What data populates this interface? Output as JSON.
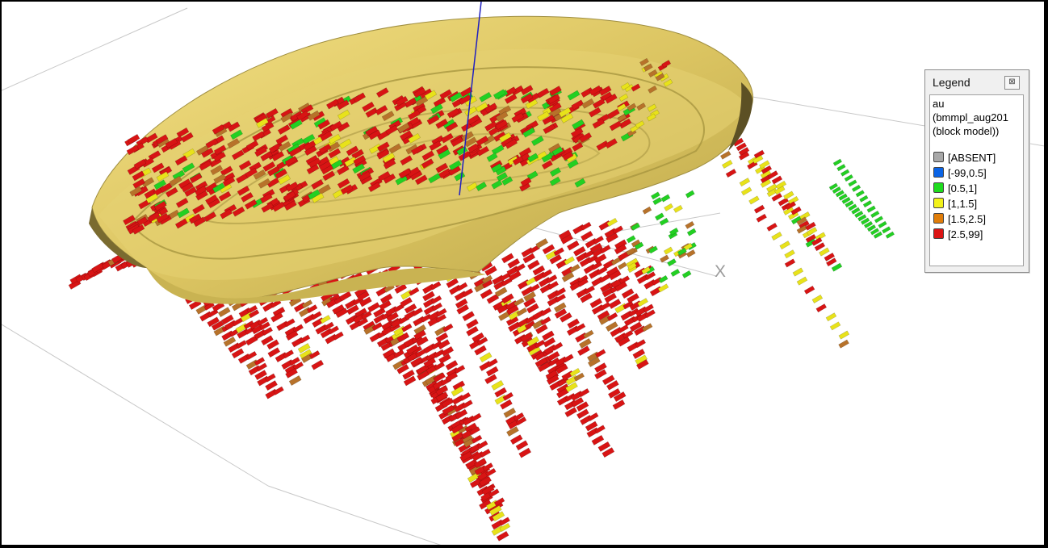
{
  "viewer": {
    "axis_x_label": "X"
  },
  "legend": {
    "title": "Legend",
    "close_glyph": "⊠",
    "attribute": "au",
    "source_line1": "(bmmpl_aug201",
    "source_line2": "(block model))",
    "items": [
      {
        "label": "[ABSENT]",
        "color": "#a8a8a8"
      },
      {
        "label": "[-99,0.5]",
        "color": "#0a64e6"
      },
      {
        "label": "[0.5,1]",
        "color": "#1edc1e"
      },
      {
        "label": "[1,1.5]",
        "color": "#f2f21a"
      },
      {
        "label": "[1.5,2.5]",
        "color": "#e07d0a"
      },
      {
        "label": "[2.5,99]",
        "color": "#dc1414"
      }
    ]
  },
  "colors": {
    "pit_shell": "#d8c25e",
    "pit_shadow": "#8a7a3a",
    "grade_red": "#d81414",
    "grade_orange": "#b7722a",
    "grade_yellow": "#e8e21a",
    "grade_green": "#22d022",
    "grid_line": "#c8c8c8",
    "z_axis": "#2020c0"
  }
}
